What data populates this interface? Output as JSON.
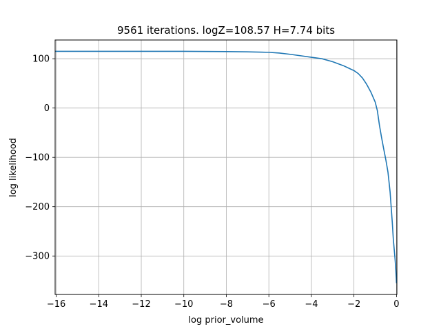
{
  "chart_data": {
    "type": "line",
    "title": "9561 iterations. logZ=108.57 H=7.74 bits",
    "xlabel": "log prior_volume",
    "ylabel": "log likelihood",
    "xlim": [
      -16.05,
      0.02
    ],
    "ylim": [
      -378,
      138
    ],
    "xticks": [
      -16,
      -14,
      -12,
      -10,
      -8,
      -6,
      -4,
      -2,
      0
    ],
    "xtick_labels": [
      "−16",
      "−14",
      "−12",
      "−10",
      "−8",
      "−6",
      "−4",
      "−2",
      "0"
    ],
    "yticks": [
      100,
      0,
      -100,
      -200,
      -300
    ],
    "ytick_labels": [
      "100",
      "0",
      "−100",
      "−200",
      "−300"
    ],
    "grid": true,
    "series": [
      {
        "color": "#1f77b4",
        "x": [
          -16.05,
          -14,
          -12,
          -10,
          -8,
          -7,
          -6,
          -5.5,
          -5,
          -4.5,
          -4,
          -3.5,
          -3,
          -2.5,
          -2,
          -1.8,
          -1.6,
          -1.4,
          -1.2,
          -1.0,
          -0.9,
          -0.8,
          -0.7,
          -0.6,
          -0.5,
          -0.4,
          -0.3,
          -0.2,
          -0.15,
          -0.1,
          -0.06,
          -0.03,
          -0.01,
          0
        ],
        "y": [
          115,
          115,
          115,
          115,
          114.5,
          114,
          113,
          111.5,
          109,
          106,
          103,
          100,
          94,
          86,
          76,
          70,
          61,
          48,
          32,
          12,
          -5,
          -35,
          -60,
          -83,
          -105,
          -130,
          -170,
          -230,
          -265,
          -290,
          -310,
          -330,
          -345,
          -355
        ]
      }
    ]
  }
}
